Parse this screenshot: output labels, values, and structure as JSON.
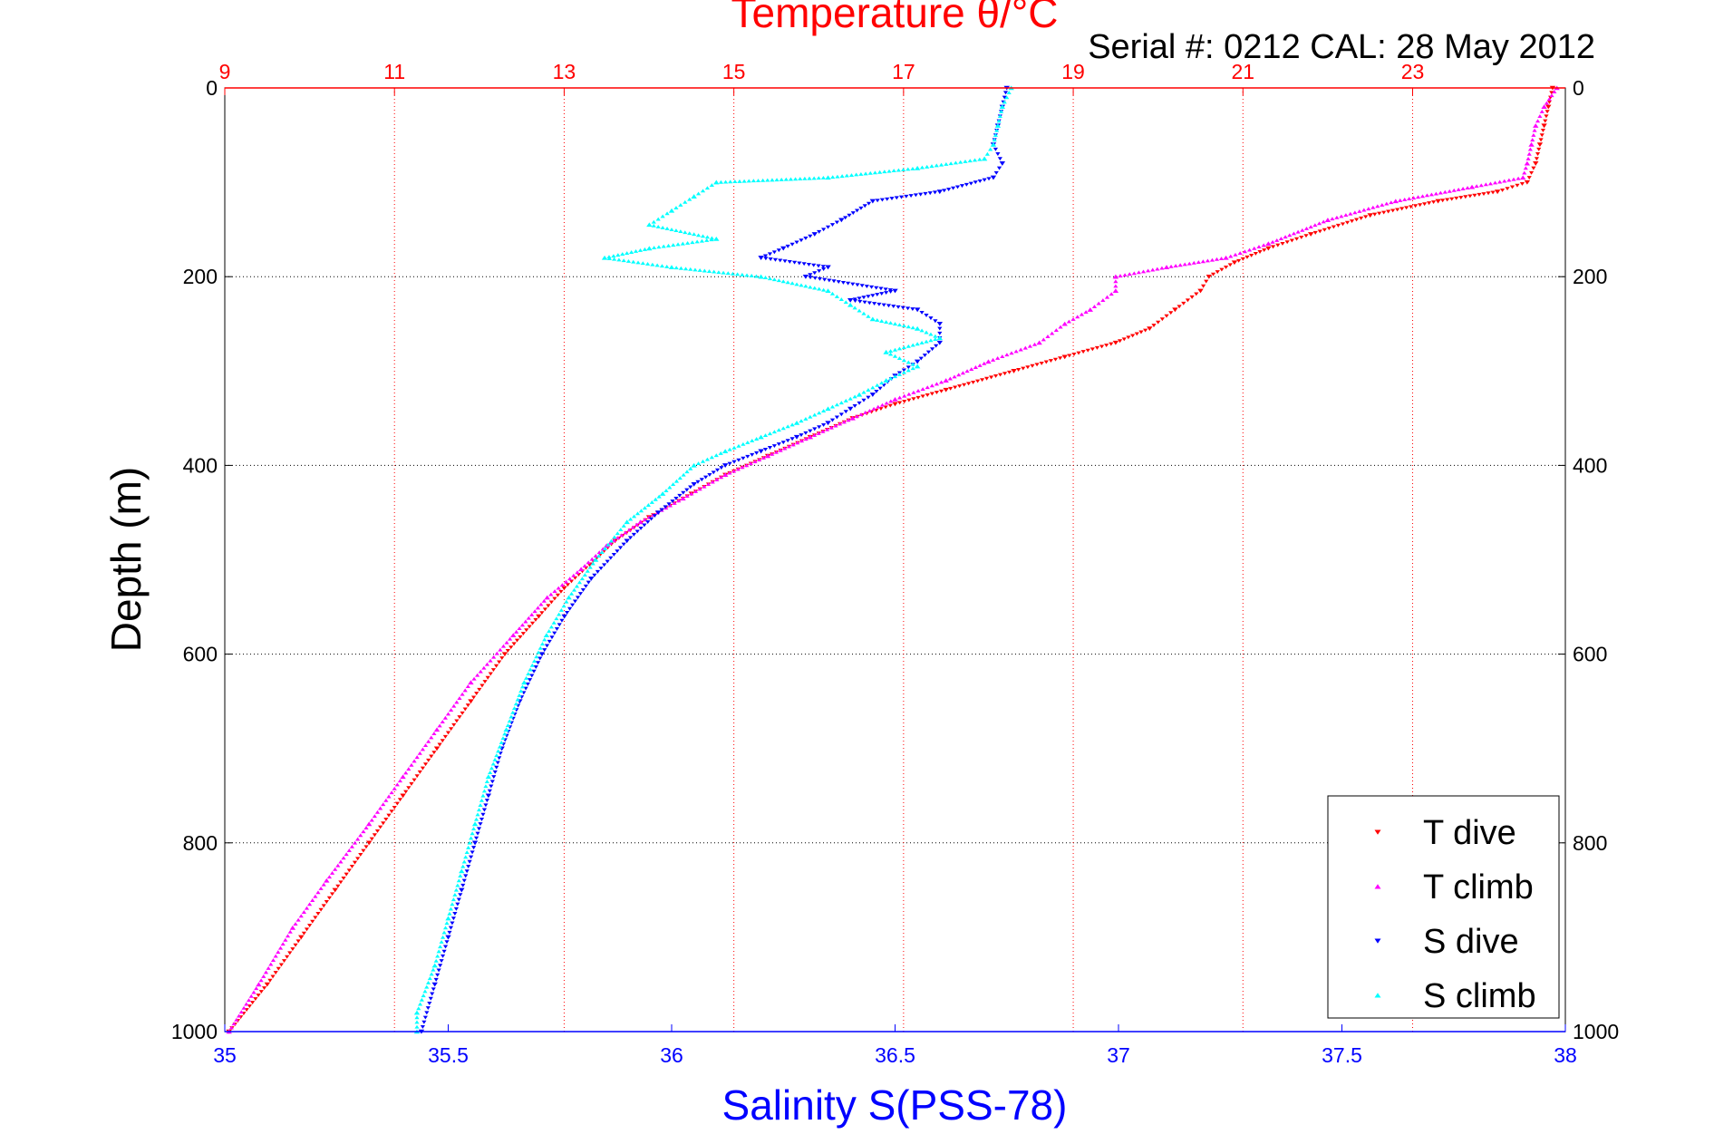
{
  "chart_data": {
    "type": "scatter",
    "title": "Temperature θ/°C",
    "serial_note": "Serial #: 0212  CAL: 28 May 2012",
    "ylabel": "Depth (m)",
    "xlabel_bottom": "Salinity S(PSS-78)",
    "top_axis": {
      "label": "Temperature θ/°C",
      "lim": [
        9,
        24.8
      ],
      "ticks": [
        "9",
        "11",
        "13",
        "15",
        "17",
        "19",
        "21",
        "23"
      ],
      "color": "#ff0000"
    },
    "bottom_axis": {
      "label": "Salinity S(PSS-78)",
      "lim": [
        35,
        38
      ],
      "ticks": [
        "35",
        "35.5",
        "36",
        "36.5",
        "37",
        "37.5",
        "38"
      ],
      "color": "#0000ff"
    },
    "y_axis": {
      "lim": [
        0,
        1000
      ],
      "reversed": true,
      "ticks": [
        "0",
        "200",
        "400",
        "600",
        "800",
        "1000"
      ]
    },
    "grid": true,
    "legend": {
      "placement": "bottom-right",
      "entries": [
        {
          "label": "T dive",
          "color": "#ff0000",
          "marker": "triangle-down"
        },
        {
          "label": "T climb",
          "color": "#ff00ff",
          "marker": "triangle-up"
        },
        {
          "label": "S dive",
          "color": "#0000ff",
          "marker": "triangle-down"
        },
        {
          "label": "S climb",
          "color": "#00ffff",
          "marker": "triangle-up"
        }
      ]
    },
    "series": [
      {
        "name": "T dive",
        "axis": "top",
        "color": "#ff0000",
        "marker": "triangle-down",
        "points": [
          [
            24.65,
            0
          ],
          [
            24.6,
            20
          ],
          [
            24.55,
            40
          ],
          [
            24.5,
            60
          ],
          [
            24.45,
            80
          ],
          [
            24.35,
            100
          ],
          [
            24.0,
            110
          ],
          [
            23.3,
            120
          ],
          [
            22.5,
            135
          ],
          [
            21.8,
            155
          ],
          [
            21.3,
            170
          ],
          [
            20.9,
            185
          ],
          [
            20.6,
            200
          ],
          [
            20.5,
            215
          ],
          [
            20.2,
            235
          ],
          [
            19.9,
            255
          ],
          [
            19.5,
            270
          ],
          [
            18.9,
            285
          ],
          [
            18.3,
            300
          ],
          [
            17.5,
            320
          ],
          [
            16.9,
            335
          ],
          [
            16.4,
            350
          ],
          [
            15.9,
            370
          ],
          [
            15.4,
            390
          ],
          [
            14.9,
            410
          ],
          [
            14.5,
            430
          ],
          [
            14.0,
            455
          ],
          [
            13.6,
            480
          ],
          [
            13.3,
            505
          ],
          [
            13.0,
            530
          ],
          [
            12.7,
            560
          ],
          [
            12.3,
            600
          ],
          [
            11.9,
            650
          ],
          [
            11.5,
            700
          ],
          [
            11.1,
            750
          ],
          [
            10.7,
            800
          ],
          [
            10.3,
            850
          ],
          [
            9.9,
            900
          ],
          [
            9.5,
            950
          ],
          [
            9.05,
            1000
          ]
        ]
      },
      {
        "name": "T climb",
        "axis": "top",
        "color": "#ff00ff",
        "marker": "triangle-up",
        "points": [
          [
            24.7,
            0
          ],
          [
            24.55,
            20
          ],
          [
            24.45,
            40
          ],
          [
            24.4,
            60
          ],
          [
            24.35,
            80
          ],
          [
            24.3,
            95
          ],
          [
            23.7,
            105
          ],
          [
            22.8,
            120
          ],
          [
            22.0,
            140
          ],
          [
            21.3,
            165
          ],
          [
            20.8,
            180
          ],
          [
            20.1,
            190
          ],
          [
            19.5,
            200
          ],
          [
            19.5,
            215
          ],
          [
            19.2,
            235
          ],
          [
            18.9,
            250
          ],
          [
            18.6,
            270
          ],
          [
            18.0,
            290
          ],
          [
            17.5,
            310
          ],
          [
            16.9,
            330
          ],
          [
            16.4,
            350
          ],
          [
            15.9,
            370
          ],
          [
            15.4,
            390
          ],
          [
            14.9,
            410
          ],
          [
            14.4,
            435
          ],
          [
            13.9,
            460
          ],
          [
            13.5,
            485
          ],
          [
            13.2,
            510
          ],
          [
            12.8,
            540
          ],
          [
            12.4,
            580
          ],
          [
            11.9,
            630
          ],
          [
            11.5,
            680
          ],
          [
            11.1,
            730
          ],
          [
            10.7,
            780
          ],
          [
            10.2,
            840
          ],
          [
            9.8,
            890
          ],
          [
            9.4,
            950
          ],
          [
            9.05,
            1000
          ]
        ]
      },
      {
        "name": "S dive",
        "axis": "bottom",
        "color": "#0000ff",
        "marker": "triangle-down",
        "points": [
          [
            36.75,
            0
          ],
          [
            36.74,
            20
          ],
          [
            36.73,
            40
          ],
          [
            36.72,
            60
          ],
          [
            36.74,
            80
          ],
          [
            36.72,
            95
          ],
          [
            36.6,
            110
          ],
          [
            36.45,
            120
          ],
          [
            36.38,
            140
          ],
          [
            36.32,
            155
          ],
          [
            36.25,
            170
          ],
          [
            36.2,
            180
          ],
          [
            36.35,
            190
          ],
          [
            36.3,
            200
          ],
          [
            36.5,
            215
          ],
          [
            36.4,
            225
          ],
          [
            36.55,
            235
          ],
          [
            36.6,
            250
          ],
          [
            36.6,
            270
          ],
          [
            36.55,
            290
          ],
          [
            36.5,
            305
          ],
          [
            36.45,
            325
          ],
          [
            36.4,
            340
          ],
          [
            36.35,
            355
          ],
          [
            36.28,
            370
          ],
          [
            36.2,
            385
          ],
          [
            36.12,
            400
          ],
          [
            36.05,
            420
          ],
          [
            35.97,
            450
          ],
          [
            35.9,
            480
          ],
          [
            35.82,
            520
          ],
          [
            35.76,
            560
          ],
          [
            35.71,
            600
          ],
          [
            35.66,
            650
          ],
          [
            35.62,
            700
          ],
          [
            35.59,
            750
          ],
          [
            35.56,
            800
          ],
          [
            35.53,
            850
          ],
          [
            35.5,
            900
          ],
          [
            35.47,
            950
          ],
          [
            35.44,
            1000
          ]
        ]
      },
      {
        "name": "S climb",
        "axis": "bottom",
        "color": "#00ffff",
        "marker": "triangle-up",
        "points": [
          [
            36.76,
            0
          ],
          [
            36.74,
            20
          ],
          [
            36.73,
            40
          ],
          [
            36.72,
            60
          ],
          [
            36.7,
            75
          ],
          [
            36.55,
            85
          ],
          [
            36.35,
            95
          ],
          [
            36.1,
            100
          ],
          [
            36.05,
            115
          ],
          [
            36.0,
            130
          ],
          [
            35.95,
            145
          ],
          [
            36.1,
            160
          ],
          [
            35.95,
            170
          ],
          [
            35.85,
            180
          ],
          [
            36.0,
            190
          ],
          [
            36.2,
            200
          ],
          [
            36.35,
            215
          ],
          [
            36.4,
            230
          ],
          [
            36.45,
            245
          ],
          [
            36.55,
            255
          ],
          [
            36.6,
            265
          ],
          [
            36.48,
            280
          ],
          [
            36.55,
            295
          ],
          [
            36.48,
            310
          ],
          [
            36.42,
            325
          ],
          [
            36.35,
            340
          ],
          [
            36.28,
            355
          ],
          [
            36.2,
            370
          ],
          [
            36.12,
            385
          ],
          [
            36.05,
            400
          ],
          [
            35.98,
            430
          ],
          [
            35.9,
            460
          ],
          [
            35.83,
            500
          ],
          [
            35.77,
            540
          ],
          [
            35.72,
            580
          ],
          [
            35.67,
            630
          ],
          [
            35.63,
            680
          ],
          [
            35.59,
            730
          ],
          [
            35.56,
            780
          ],
          [
            35.53,
            830
          ],
          [
            35.5,
            880
          ],
          [
            35.47,
            930
          ],
          [
            35.43,
            980
          ],
          [
            35.43,
            1000
          ]
        ]
      }
    ]
  }
}
